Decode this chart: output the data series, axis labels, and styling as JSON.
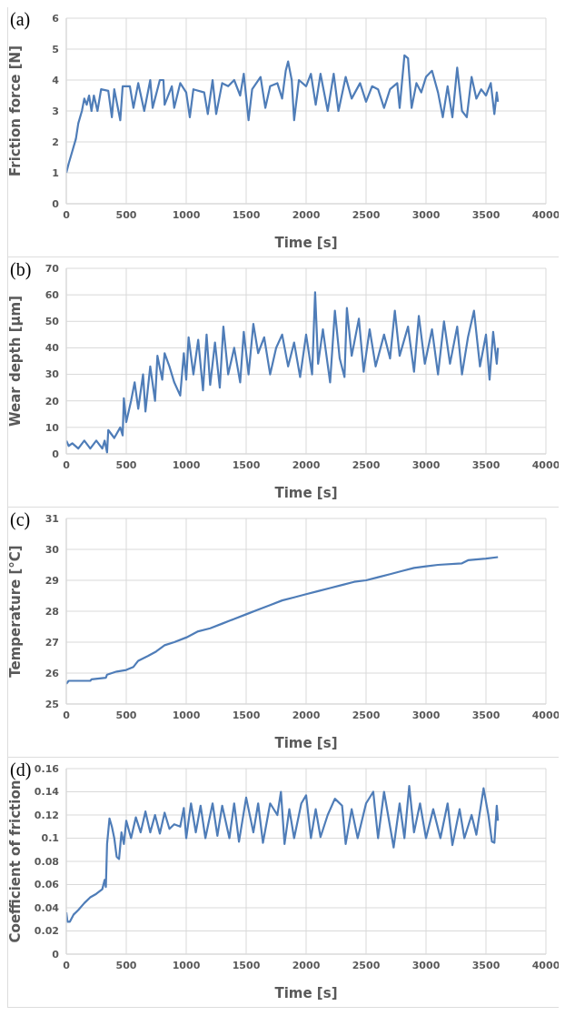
{
  "chart_data": [
    {
      "type": "line",
      "title": "(a)",
      "xlabel": "Time [s]",
      "ylabel": "Friction force [N]",
      "xlim": [
        0,
        4000
      ],
      "xticks": [
        0,
        500,
        1000,
        1500,
        2000,
        2500,
        3000,
        3500,
        4000
      ],
      "ylim": [
        0,
        6
      ],
      "yticks": [
        0,
        1,
        2,
        3,
        4,
        5,
        6
      ],
      "grid": true,
      "x": [
        0,
        20,
        50,
        80,
        100,
        130,
        150,
        170,
        190,
        210,
        230,
        260,
        290,
        350,
        380,
        400,
        450,
        470,
        530,
        560,
        600,
        650,
        700,
        720,
        780,
        810,
        820,
        880,
        900,
        950,
        1000,
        1030,
        1060,
        1150,
        1180,
        1220,
        1250,
        1300,
        1350,
        1400,
        1450,
        1480,
        1520,
        1550,
        1620,
        1660,
        1700,
        1760,
        1800,
        1830,
        1850,
        1880,
        1900,
        1940,
        2000,
        2040,
        2080,
        2120,
        2180,
        2230,
        2270,
        2330,
        2380,
        2450,
        2500,
        2550,
        2600,
        2650,
        2700,
        2760,
        2780,
        2820,
        2850,
        2880,
        2920,
        2960,
        3000,
        3050,
        3100,
        3140,
        3180,
        3220,
        3260,
        3300,
        3340,
        3380,
        3420,
        3460,
        3500,
        3540,
        3570,
        3590,
        3600
      ],
      "series": [
        {
          "color": "#4f7db8",
          "values": [
            1.0,
            1.3,
            1.7,
            2.1,
            2.6,
            3.0,
            3.4,
            3.2,
            3.5,
            3.0,
            3.5,
            3.0,
            3.7,
            3.65,
            2.8,
            3.7,
            2.7,
            3.8,
            3.8,
            3.1,
            3.9,
            3.0,
            4.0,
            3.1,
            4.0,
            4.0,
            3.2,
            3.8,
            3.1,
            3.9,
            3.6,
            2.8,
            3.7,
            3.6,
            2.9,
            4.0,
            2.9,
            3.9,
            3.8,
            4.0,
            3.5,
            4.2,
            2.7,
            3.7,
            4.1,
            3.1,
            3.8,
            3.9,
            3.4,
            4.3,
            4.6,
            4.0,
            2.7,
            4.0,
            3.8,
            4.2,
            3.2,
            4.2,
            3.0,
            4.2,
            3.0,
            4.1,
            3.4,
            3.9,
            3.3,
            3.8,
            3.7,
            3.1,
            3.7,
            3.9,
            3.1,
            4.8,
            4.7,
            3.1,
            3.9,
            3.6,
            4.1,
            4.3,
            3.6,
            2.8,
            3.8,
            2.8,
            4.4,
            3.0,
            2.8,
            4.1,
            3.4,
            3.7,
            3.5,
            3.9,
            2.9,
            3.6,
            3.3
          ]
        }
      ]
    },
    {
      "type": "line",
      "title": "(b)",
      "xlabel": "Time [s]",
      "ylabel": "Wear depth [µm]",
      "xlim": [
        0,
        4000
      ],
      "xticks": [
        0,
        500,
        1000,
        1500,
        2000,
        2500,
        3000,
        3500,
        4000
      ],
      "ylim": [
        0,
        70
      ],
      "yticks": [
        0,
        10,
        20,
        30,
        40,
        50,
        60,
        70
      ],
      "grid": true,
      "x": [
        0,
        20,
        50,
        100,
        150,
        200,
        250,
        300,
        320,
        340,
        350,
        400,
        450,
        470,
        480,
        500,
        540,
        570,
        600,
        640,
        660,
        700,
        740,
        760,
        800,
        820,
        860,
        900,
        950,
        980,
        1000,
        1020,
        1060,
        1100,
        1140,
        1170,
        1200,
        1240,
        1280,
        1310,
        1350,
        1400,
        1450,
        1480,
        1520,
        1560,
        1600,
        1650,
        1700,
        1750,
        1800,
        1850,
        1900,
        1950,
        2000,
        2050,
        2075,
        2100,
        2140,
        2200,
        2240,
        2280,
        2320,
        2340,
        2380,
        2440,
        2480,
        2530,
        2580,
        2650,
        2700,
        2740,
        2780,
        2850,
        2900,
        2940,
        2990,
        3050,
        3100,
        3150,
        3200,
        3260,
        3300,
        3350,
        3400,
        3450,
        3500,
        3530,
        3560,
        3590,
        3600
      ],
      "series": [
        {
          "color": "#4f7db8",
          "values": [
            5,
            3,
            4,
            2,
            5,
            2,
            5,
            2,
            5,
            0.5,
            9,
            6,
            10,
            7,
            21,
            12,
            20,
            27,
            17,
            30,
            16,
            33,
            20,
            37,
            28,
            38,
            33,
            27,
            22,
            38,
            28,
            44,
            30,
            43,
            24,
            45,
            26,
            42,
            25,
            48,
            30,
            40,
            27,
            46,
            30,
            49,
            38,
            44,
            30,
            40,
            45,
            33,
            42,
            29,
            45,
            30,
            61,
            34,
            47,
            27,
            54,
            36,
            29,
            55,
            37,
            51,
            31,
            47,
            33,
            45,
            36,
            54,
            37,
            48,
            31,
            52,
            34,
            47,
            30,
            50,
            34,
            48,
            30,
            44,
            54,
            33,
            45,
            28,
            46,
            34,
            40
          ]
        }
      ]
    },
    {
      "type": "line",
      "title": "(c)",
      "xlabel": "Time [s]",
      "ylabel": "Temperature [°C]",
      "xlim": [
        0,
        4000
      ],
      "xticks": [
        0,
        500,
        1000,
        1500,
        2000,
        2500,
        3000,
        3500,
        4000
      ],
      "ylim": [
        25,
        31
      ],
      "yticks": [
        25,
        26,
        27,
        28,
        29,
        30,
        31
      ],
      "grid": true,
      "x": [
        0,
        20,
        200,
        210,
        330,
        340,
        420,
        500,
        560,
        600,
        680,
        750,
        820,
        900,
        1000,
        1100,
        1200,
        1300,
        1400,
        1500,
        1600,
        1700,
        1800,
        1900,
        2000,
        2100,
        2200,
        2300,
        2400,
        2500,
        2600,
        2700,
        2800,
        2900,
        3000,
        3100,
        3300,
        3350,
        3500,
        3600
      ],
      "series": [
        {
          "color": "#4f7db8",
          "values": [
            25.65,
            25.75,
            25.75,
            25.8,
            25.85,
            25.95,
            26.05,
            26.1,
            26.2,
            26.4,
            26.55,
            26.7,
            26.9,
            27.0,
            27.15,
            27.35,
            27.45,
            27.6,
            27.75,
            27.9,
            28.05,
            28.2,
            28.35,
            28.45,
            28.55,
            28.65,
            28.75,
            28.85,
            28.95,
            29.0,
            29.1,
            29.2,
            29.3,
            29.4,
            29.45,
            29.5,
            29.55,
            29.65,
            29.7,
            29.75
          ]
        }
      ]
    },
    {
      "type": "line",
      "title": "(d)",
      "xlabel": "Time [s]",
      "ylabel": "Coefficient of friction",
      "xlim": [
        0,
        4000
      ],
      "xticks": [
        0,
        500,
        1000,
        1500,
        2000,
        2500,
        3000,
        3500,
        4000
      ],
      "ylim": [
        0,
        0.16
      ],
      "yticks": [
        0,
        0.02,
        0.04,
        0.06,
        0.08,
        0.1,
        0.12,
        0.14,
        0.16
      ],
      "grid": true,
      "x": [
        0,
        10,
        30,
        60,
        100,
        150,
        200,
        250,
        300,
        320,
        330,
        340,
        360,
        380,
        400,
        420,
        440,
        460,
        480,
        500,
        540,
        580,
        620,
        660,
        700,
        740,
        780,
        820,
        860,
        900,
        950,
        980,
        1000,
        1040,
        1080,
        1120,
        1160,
        1220,
        1260,
        1300,
        1360,
        1400,
        1440,
        1500,
        1560,
        1600,
        1640,
        1700,
        1760,
        1790,
        1820,
        1860,
        1900,
        1960,
        2000,
        2040,
        2080,
        2120,
        2180,
        2240,
        2300,
        2330,
        2380,
        2430,
        2500,
        2560,
        2600,
        2650,
        2700,
        2730,
        2780,
        2820,
        2860,
        2900,
        2950,
        3000,
        3060,
        3120,
        3180,
        3220,
        3280,
        3320,
        3380,
        3420,
        3480,
        3520,
        3550,
        3570,
        3590,
        3600
      ],
      "series": [
        {
          "color": "#4f7db8",
          "values": [
            0.036,
            0.028,
            0.028,
            0.034,
            0.038,
            0.044,
            0.049,
            0.052,
            0.056,
            0.064,
            0.058,
            0.095,
            0.117,
            0.11,
            0.1,
            0.084,
            0.082,
            0.105,
            0.095,
            0.115,
            0.1,
            0.118,
            0.105,
            0.123,
            0.105,
            0.12,
            0.104,
            0.122,
            0.108,
            0.112,
            0.11,
            0.126,
            0.1,
            0.13,
            0.105,
            0.128,
            0.1,
            0.13,
            0.102,
            0.128,
            0.1,
            0.13,
            0.097,
            0.135,
            0.105,
            0.13,
            0.096,
            0.13,
            0.12,
            0.14,
            0.095,
            0.125,
            0.1,
            0.13,
            0.137,
            0.1,
            0.125,
            0.101,
            0.12,
            0.134,
            0.128,
            0.095,
            0.125,
            0.1,
            0.13,
            0.14,
            0.1,
            0.14,
            0.11,
            0.092,
            0.13,
            0.1,
            0.145,
            0.105,
            0.13,
            0.1,
            0.125,
            0.1,
            0.13,
            0.094,
            0.125,
            0.1,
            0.12,
            0.103,
            0.143,
            0.12,
            0.097,
            0.096,
            0.128,
            0.115
          ]
        }
      ]
    }
  ]
}
